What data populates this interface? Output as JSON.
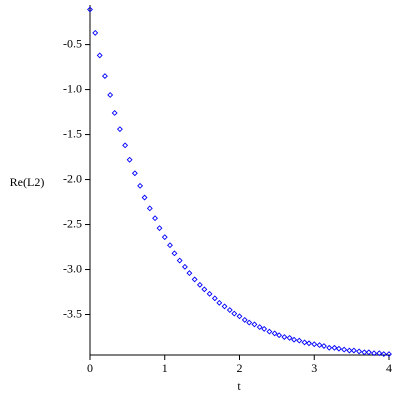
{
  "chart_data": {
    "type": "scatter",
    "xlabel": "t",
    "ylabel": "Re(L2)",
    "x": [
      0,
      0.07,
      0.13,
      0.2,
      0.27,
      0.33,
      0.4,
      0.47,
      0.53,
      0.6,
      0.67,
      0.73,
      0.8,
      0.87,
      0.93,
      1,
      1.07,
      1.13,
      1.2,
      1.27,
      1.33,
      1.4,
      1.47,
      1.53,
      1.6,
      1.67,
      1.73,
      1.8,
      1.87,
      1.93,
      2,
      2.07,
      2.13,
      2.2,
      2.27,
      2.33,
      2.4,
      2.47,
      2.53,
      2.6,
      2.67,
      2.73,
      2.8,
      2.87,
      2.93,
      3,
      3.07,
      3.13,
      3.2,
      3.27,
      3.33,
      3.4,
      3.47,
      3.53,
      3.6,
      3.67,
      3.73,
      3.8,
      3.87,
      3.93,
      4
    ],
    "values": [
      -0.11,
      -0.37,
      -0.62,
      -0.85,
      -1.06,
      -1.26,
      -1.44,
      -1.62,
      -1.78,
      -1.93,
      -2.07,
      -2.2,
      -2.32,
      -2.43,
      -2.54,
      -2.64,
      -2.73,
      -2.82,
      -2.9,
      -2.97,
      -3.04,
      -3.11,
      -3.17,
      -3.22,
      -3.27,
      -3.32,
      -3.37,
      -3.41,
      -3.45,
      -3.49,
      -3.52,
      -3.56,
      -3.59,
      -3.61,
      -3.64,
      -3.66,
      -3.69,
      -3.71,
      -3.73,
      -3.75,
      -3.76,
      -3.78,
      -3.79,
      -3.81,
      -3.82,
      -3.83,
      -3.84,
      -3.85,
      -3.87,
      -3.87,
      -3.88,
      -3.89,
      -3.9,
      -3.9,
      -3.91,
      -3.92,
      -3.92,
      -3.93,
      -3.93,
      -3.94,
      -3.94
    ],
    "color": "#0000ff",
    "xlim": [
      0,
      4
    ],
    "ylim": [
      -3.95,
      -0.06
    ],
    "xticks": [
      0,
      1,
      2,
      3,
      4
    ],
    "yticks": [
      {
        "value": -0.5,
        "label": "-0.5"
      },
      {
        "value": -1,
        "label": "-1.0"
      },
      {
        "value": -1.5,
        "label": "-1.5"
      },
      {
        "value": -2,
        "label": "-2.0"
      },
      {
        "value": -2.5,
        "label": "-2.5"
      },
      {
        "value": -3,
        "label": "-3.0"
      },
      {
        "value": -3.5,
        "label": "-3.5"
      }
    ]
  }
}
